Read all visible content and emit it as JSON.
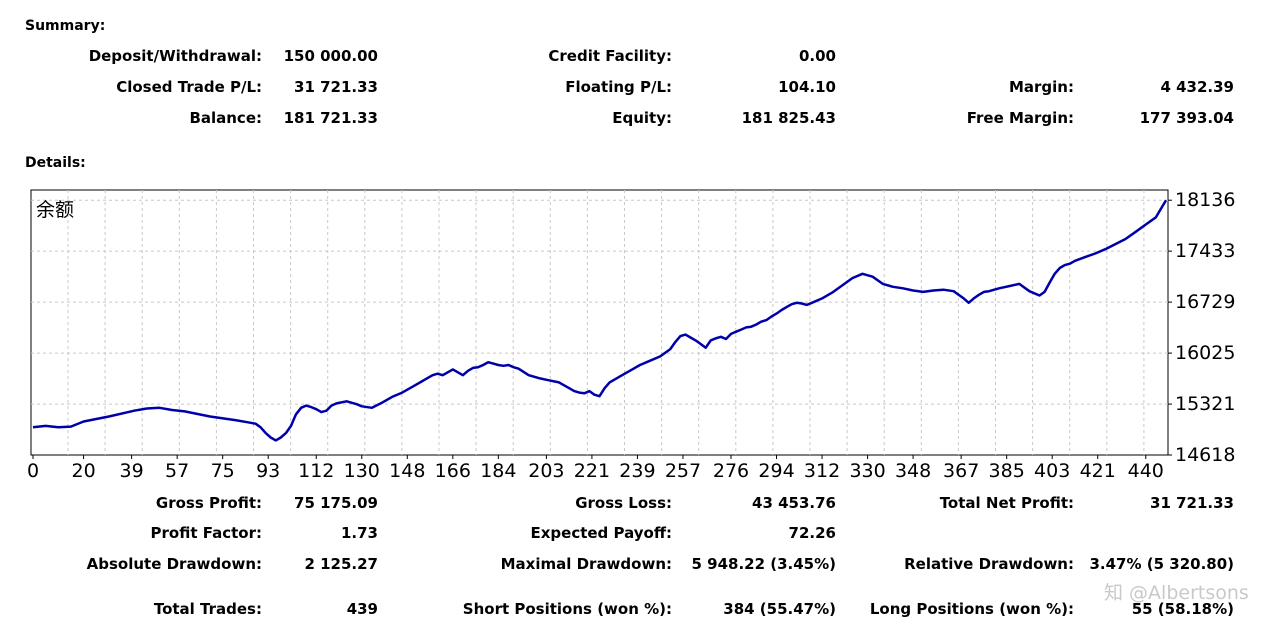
{
  "summary": {
    "heading": "Summary:",
    "rows": [
      [
        {
          "label": "Deposit/Withdrawal:",
          "value": "150 000.00"
        },
        {
          "label": "Credit Facility:",
          "value": "0.00"
        },
        {
          "label": "",
          "value": ""
        }
      ],
      [
        {
          "label": "Closed Trade P/L:",
          "value": "31 721.33"
        },
        {
          "label": "Floating P/L:",
          "value": "104.10"
        },
        {
          "label": "Margin:",
          "value": "4 432.39"
        }
      ],
      [
        {
          "label": "Balance:",
          "value": "181 721.33"
        },
        {
          "label": "Equity:",
          "value": "181 825.43"
        },
        {
          "label": "Free Margin:",
          "value": "177 393.04"
        }
      ]
    ]
  },
  "details": {
    "heading": "Details:",
    "rows": [
      [
        {
          "label": "Gross Profit:",
          "value": "75 175.09"
        },
        {
          "label": "Gross Loss:",
          "value": "43 453.76"
        },
        {
          "label": "Total Net Profit:",
          "value": "31 721.33"
        }
      ],
      [
        {
          "label": "Profit Factor:",
          "value": "1.73"
        },
        {
          "label": "Expected Payoff:",
          "value": "72.26"
        },
        {
          "label": "",
          "value": ""
        }
      ],
      [
        {
          "label": "Absolute Drawdown:",
          "value": "2 125.27"
        },
        {
          "label": "Maximal Drawdown:",
          "value": "5 948.22 (3.45%)"
        },
        {
          "label": "Relative Drawdown:",
          "value": "3.47% (5 320.80)"
        }
      ],
      [
        {
          "label": "Total Trades:",
          "value": "439"
        },
        {
          "label": "Short Positions (won %):",
          "value": "384 (55.47%)"
        },
        {
          "label": "Long Positions (won %):",
          "value": "55 (58.18%)"
        }
      ]
    ]
  },
  "watermark": "知 @Albertsons",
  "chart_data": {
    "type": "line",
    "title": "余额",
    "line_color": "#0000aa",
    "grid": true,
    "xlim": [
      0,
      448
    ],
    "ylim": [
      14618,
      18277
    ],
    "x_ticks": [
      "0",
      "20",
      "39",
      "57",
      "75",
      "93",
      "112",
      "130",
      "148",
      "166",
      "184",
      "203",
      "221",
      "239",
      "257",
      "276",
      "294",
      "312",
      "330",
      "348",
      "367",
      "385",
      "403",
      "421",
      "440"
    ],
    "x_tick_values": [
      0,
      20,
      39,
      57,
      75,
      93,
      112,
      130,
      148,
      166,
      184,
      203,
      221,
      239,
      257,
      276,
      294,
      312,
      330,
      348,
      367,
      385,
      403,
      421,
      440
    ],
    "y_ticks": [
      "18136",
      "17433",
      "16729",
      "16025",
      "15321",
      "14618"
    ],
    "y_tick_values": [
      18136,
      17433,
      16729,
      16025,
      15321,
      14618
    ],
    "series": [
      {
        "x": [
          0,
          5,
          10,
          15,
          20,
          30,
          40,
          45,
          50,
          55,
          60,
          70,
          80,
          85,
          88,
          90,
          92,
          94,
          96,
          98,
          100,
          102,
          104,
          106,
          108,
          110,
          112,
          114,
          116,
          118,
          120,
          124,
          128,
          130,
          134,
          138,
          142,
          146,
          150,
          154,
          158,
          160,
          162,
          164,
          166,
          168,
          170,
          172,
          174,
          176,
          178,
          180,
          182,
          184,
          186,
          188,
          190,
          192,
          196,
          200,
          204,
          208,
          212,
          214,
          216,
          218,
          220,
          222,
          224,
          226,
          228,
          232,
          236,
          240,
          244,
          248,
          252,
          254,
          256,
          258,
          260,
          262,
          264,
          266,
          268,
          270,
          272,
          274,
          276,
          278,
          280,
          282,
          284,
          286,
          288,
          290,
          292,
          294,
          296,
          298,
          300,
          302,
          304,
          306,
          308,
          312,
          316,
          320,
          324,
          328,
          332,
          336,
          340,
          344,
          348,
          352,
          356,
          360,
          364,
          368,
          370,
          372,
          374,
          376,
          378,
          382,
          386,
          390,
          394,
          398,
          400,
          402,
          404,
          406,
          408,
          410,
          412,
          416,
          420,
          424,
          428,
          432,
          436,
          440,
          444,
          448
        ],
        "y": [
          15000,
          15020,
          15000,
          15010,
          15080,
          15150,
          15230,
          15260,
          15270,
          15240,
          15220,
          15150,
          15100,
          15070,
          15050,
          15000,
          14920,
          14860,
          14820,
          14860,
          14920,
          15020,
          15180,
          15270,
          15300,
          15280,
          15250,
          15210,
          15230,
          15300,
          15330,
          15360,
          15320,
          15290,
          15270,
          15340,
          15420,
          15480,
          15560,
          15640,
          15720,
          15740,
          15720,
          15760,
          15800,
          15760,
          15720,
          15780,
          15820,
          15830,
          15860,
          15900,
          15880,
          15860,
          15850,
          15860,
          15830,
          15810,
          15720,
          15680,
          15650,
          15620,
          15540,
          15500,
          15480,
          15470,
          15500,
          15450,
          15430,
          15540,
          15620,
          15700,
          15780,
          15860,
          15920,
          15980,
          16080,
          16180,
          16260,
          16280,
          16240,
          16200,
          16150,
          16100,
          16200,
          16230,
          16250,
          16220,
          16290,
          16320,
          16350,
          16380,
          16390,
          16420,
          16460,
          16480,
          16530,
          16570,
          16620,
          16660,
          16700,
          16720,
          16710,
          16690,
          16720,
          16780,
          16860,
          16960,
          17060,
          17120,
          17080,
          16980,
          16940,
          16920,
          16890,
          16870,
          16890,
          16900,
          16880,
          16780,
          16720,
          16780,
          16830,
          16870,
          16880,
          16920,
          16950,
          16980,
          16880,
          16820,
          16870,
          17000,
          17120,
          17200,
          17240,
          17260,
          17300,
          17350,
          17400,
          17460,
          17530,
          17600,
          17700,
          17800,
          17900,
          18136
        ]
      }
    ]
  }
}
